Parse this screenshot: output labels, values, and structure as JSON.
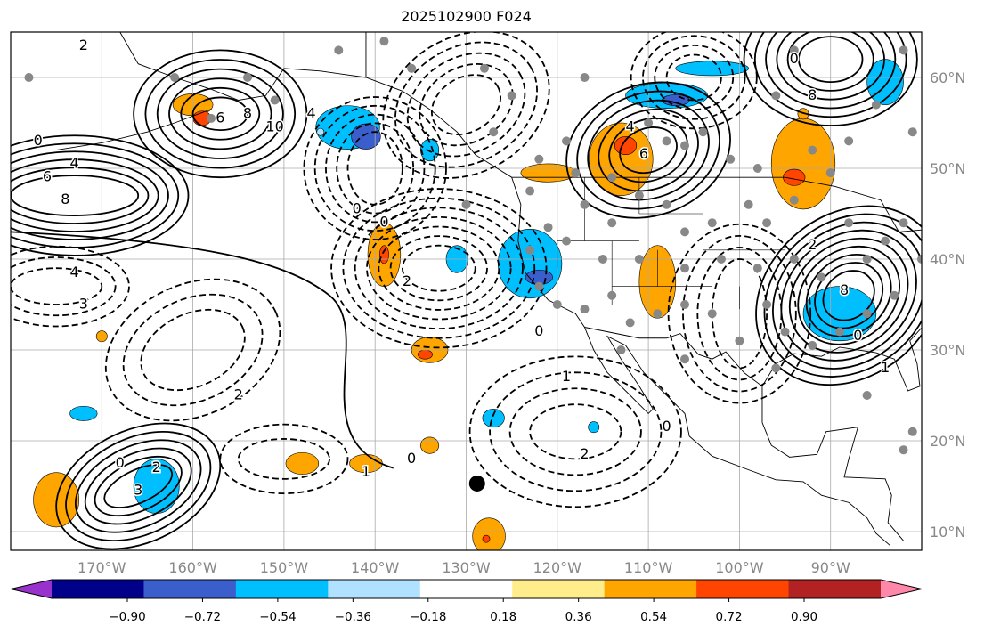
{
  "title": "2025102900 F024",
  "map": {
    "lon_range": [
      -180,
      -80
    ],
    "lat_range": [
      7.9,
      65
    ],
    "lon_ticks": [
      {
        "value": -170,
        "label": "170°W"
      },
      {
        "value": -160,
        "label": "160°W"
      },
      {
        "value": -150,
        "label": "150°W"
      },
      {
        "value": -140,
        "label": "140°W"
      },
      {
        "value": -130,
        "label": "130°W"
      },
      {
        "value": -120,
        "label": "120°W"
      },
      {
        "value": -110,
        "label": "110°W"
      },
      {
        "value": -100,
        "label": "100°W"
      },
      {
        "value": -90,
        "label": "90°W"
      }
    ],
    "lat_ticks": [
      {
        "value": 60,
        "label": "60°N"
      },
      {
        "value": 50,
        "label": "50°N"
      },
      {
        "value": 40,
        "label": "40°N"
      },
      {
        "value": 30,
        "label": "30°N"
      },
      {
        "value": 20,
        "label": "20°N"
      },
      {
        "value": 10,
        "label": "10°N"
      }
    ],
    "marker": {
      "lon": -128.8,
      "lat": 15.3
    },
    "contour_labels": [
      {
        "lon": -172,
        "lat": 63.5,
        "text": "2"
      },
      {
        "lon": -157,
        "lat": 55.5,
        "text": "6"
      },
      {
        "lon": -154,
        "lat": 56,
        "text": "8"
      },
      {
        "lon": -151,
        "lat": 54.5,
        "text": "10"
      },
      {
        "lon": -147,
        "lat": 56,
        "text": "4"
      },
      {
        "lon": -174,
        "lat": 46.5,
        "text": "8"
      },
      {
        "lon": -176,
        "lat": 49,
        "text": "6"
      },
      {
        "lon": -173,
        "lat": 50.5,
        "text": "4"
      },
      {
        "lon": -177,
        "lat": 53,
        "text": "0"
      },
      {
        "lon": -173,
        "lat": 38.5,
        "text": "4"
      },
      {
        "lon": -172,
        "lat": 35,
        "text": "3"
      },
      {
        "lon": -164,
        "lat": 17,
        "text": "2"
      },
      {
        "lon": -166,
        "lat": 14.5,
        "text": "3"
      },
      {
        "lon": -168,
        "lat": 17.5,
        "text": "0"
      },
      {
        "lon": -155,
        "lat": 25,
        "text": "2"
      },
      {
        "lon": -136.5,
        "lat": 37.5,
        "text": "2"
      },
      {
        "lon": -139,
        "lat": 44,
        "text": "0"
      },
      {
        "lon": -142,
        "lat": 45.5,
        "text": "0"
      },
      {
        "lon": -136,
        "lat": 18,
        "text": "0"
      },
      {
        "lon": -141,
        "lat": 16.5,
        "text": "1"
      },
      {
        "lon": -119,
        "lat": 27,
        "text": "1"
      },
      {
        "lon": -117,
        "lat": 18.5,
        "text": "2"
      },
      {
        "lon": -110.5,
        "lat": 51.5,
        "text": "6"
      },
      {
        "lon": -112,
        "lat": 54.5,
        "text": "4"
      },
      {
        "lon": -108,
        "lat": 21.5,
        "text": "0"
      },
      {
        "lon": -92,
        "lat": 58,
        "text": "8"
      },
      {
        "lon": -94,
        "lat": 62,
        "text": "0"
      },
      {
        "lon": -92,
        "lat": 41.5,
        "text": "2"
      },
      {
        "lon": -88.5,
        "lat": 36.5,
        "text": "8"
      },
      {
        "lon": -87,
        "lat": 31.5,
        "text": "0"
      },
      {
        "lon": -122,
        "lat": 32,
        "text": "0"
      },
      {
        "lon": -84,
        "lat": 28,
        "text": "1"
      }
    ]
  },
  "colorbar": {
    "colors": [
      "#9932CC",
      "#00008B",
      "#3A5FCD",
      "#00BFFF",
      "#B0E2FF",
      "#FFFFFF",
      "#FFEC8B",
      "#FFA500",
      "#FF4500",
      "#B22222",
      "#FF88AA"
    ],
    "tick_labels": [
      "−0.90",
      "−0.72",
      "−0.54",
      "−0.36",
      "−0.18",
      "0.18",
      "0.36",
      "0.54",
      "0.72",
      "0.90"
    ]
  }
}
